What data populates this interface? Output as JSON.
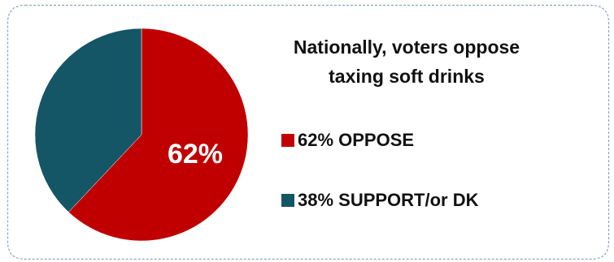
{
  "chart_data": {
    "type": "pie",
    "title_lines": [
      "Nationally, voters oppose",
      "taxing soft drinks"
    ],
    "slices": [
      {
        "value": 62,
        "color": "#c00000",
        "data_label": "62%"
      },
      {
        "value": 38,
        "color": "#145566"
      }
    ],
    "legend": [
      {
        "label": "62% OPPOSE",
        "color": "#c00000"
      },
      {
        "label": "38% SUPPORT/or DK",
        "color": "#145566"
      }
    ],
    "legend_placement": "right"
  },
  "frame_color": "#8aa4b8"
}
